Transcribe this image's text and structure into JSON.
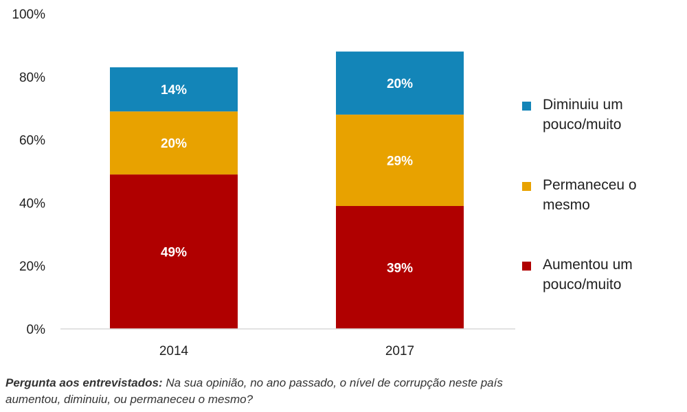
{
  "chart_data": {
    "type": "bar",
    "stacked": true,
    "categories": [
      "2014",
      "2017"
    ],
    "series": [
      {
        "name": "Aumentou um pouco/muito",
        "values": [
          49,
          39
        ],
        "labels": [
          "49%",
          "39%"
        ],
        "color": "#b00000"
      },
      {
        "name": "Permaneceu o mesmo",
        "values": [
          20,
          29
        ],
        "labels": [
          "20%",
          "29%"
        ],
        "color": "#e8a200"
      },
      {
        "name": "Diminuiu um pouco/muito",
        "values": [
          14,
          20
        ],
        "labels": [
          "14%",
          "20%"
        ],
        "color": "#1385b8"
      }
    ],
    "yticks": [
      "0%",
      "20%",
      "40%",
      "60%",
      "80%",
      "100%"
    ],
    "ylim": [
      0,
      100
    ],
    "legend_position": "right",
    "legend": [
      {
        "line1": "Diminuiu um",
        "line2": "pouco/muito",
        "color": "#1385b8"
      },
      {
        "line1": "Permaneceu o",
        "line2": "mesmo",
        "color": "#e8a200"
      },
      {
        "line1": "Aumentou um",
        "line2": "pouco/muito",
        "color": "#b00000"
      }
    ],
    "grid": false
  },
  "caption": {
    "label": "Pergunta aos entrevistados:",
    "line1": "Na sua opinião, no ano passado, o nível de corrupção neste país",
    "line2": "aumentou, diminuiu, ou permaneceu o mesmo?"
  }
}
